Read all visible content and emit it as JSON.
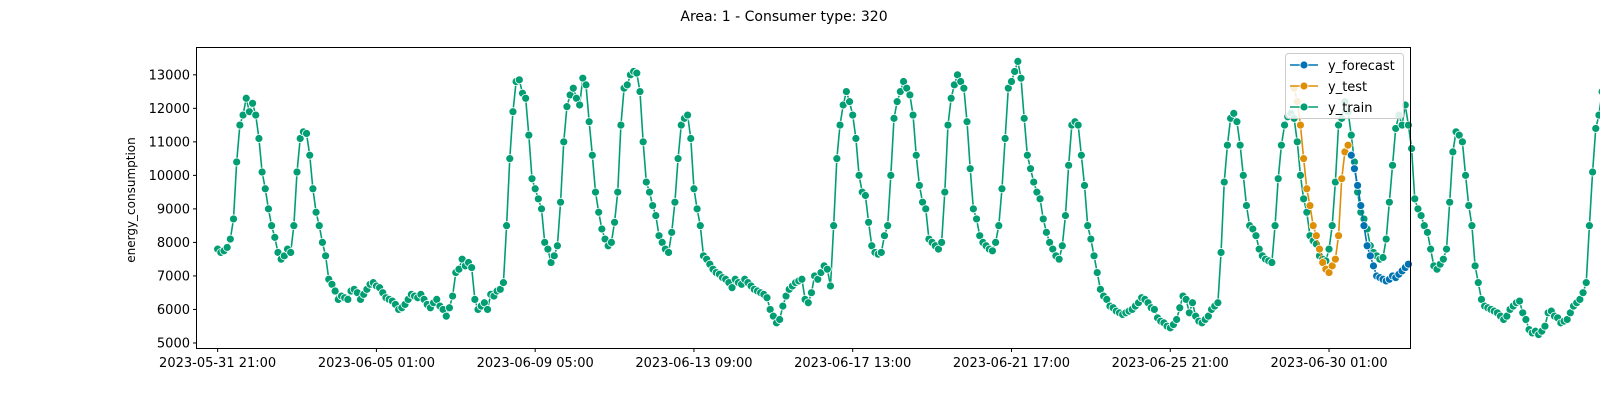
{
  "chart_data": {
    "type": "line",
    "title": "Area: 1 - Consumer type: 320",
    "xlabel": "",
    "ylabel": "energy_consumption",
    "xlim": [
      "2023-05-31T08:00",
      "2023-07-02T04:00"
    ],
    "ylim": [
      4850,
      13800
    ],
    "x_ticks": [
      "2023-05-31 21:00",
      "2023-06-05 01:00",
      "2023-06-09 05:00",
      "2023-06-13 09:00",
      "2023-06-17 13:00",
      "2023-06-21 17:00",
      "2023-06-25 21:00",
      "2023-06-30 01:00"
    ],
    "y_ticks": [
      5000,
      6000,
      7000,
      8000,
      9000,
      10000,
      11000,
      12000,
      13000
    ],
    "grid": false,
    "legend_position": "top-right",
    "legend": [
      "y_forecast",
      "y_test",
      "y_train"
    ],
    "colors": {
      "y_forecast": "#0173b2",
      "y_test": "#de8f05",
      "y_train": "#029e73"
    },
    "series": [
      {
        "name": "y_train",
        "color": "#029e73",
        "step_hours": 2,
        "x_start": "2023-05-31T21:00",
        "values": [
          7800,
          7700,
          7750,
          7850,
          8100,
          8700,
          10400,
          11500,
          11800,
          12300,
          11900,
          12150,
          11800,
          11100,
          10100,
          9600,
          9000,
          8500,
          8150,
          7700,
          7500,
          7600,
          7800,
          7700,
          8500,
          10100,
          11100,
          11300,
          11250,
          10600,
          9600,
          8900,
          8500,
          8000,
          7600,
          6900,
          6750,
          6550,
          6300,
          6400,
          6350,
          6300,
          6550,
          6600,
          6500,
          6300,
          6450,
          6600,
          6750,
          6800,
          6700,
          6650,
          6500,
          6350,
          6300,
          6250,
          6150,
          6000,
          6050,
          6150,
          6300,
          6450,
          6400,
          6350,
          6450,
          6300,
          6150,
          6050,
          6200,
          6300,
          6100,
          6000,
          5800,
          6050,
          6400,
          7100,
          7200,
          7500,
          7300,
          7400,
          7250,
          6300,
          6000,
          6100,
          6200,
          6000,
          6450,
          6400,
          6550,
          6600,
          6800,
          8500,
          10500,
          11900,
          12800,
          12850,
          12450,
          12300,
          11200,
          9900,
          9600,
          9300,
          9000,
          8000,
          7800,
          7400,
          7600,
          7900,
          9200,
          11000,
          12050,
          12400,
          12600,
          12300,
          12100,
          12900,
          12700,
          11600,
          10600,
          9500,
          8900,
          8400,
          8100,
          7900,
          8000,
          8600,
          9500,
          11500,
          12600,
          12700,
          13000,
          13100,
          13050,
          12500,
          11000,
          9800,
          9500,
          9100,
          8800,
          8200,
          8000,
          7800,
          7700,
          8300,
          9200,
          10500,
          11500,
          11700,
          11800,
          11100,
          9600,
          9000,
          8500,
          7600,
          7500,
          7350,
          7200,
          7100,
          7050,
          6950,
          6900,
          6800,
          6650,
          6900,
          6800,
          6750,
          6900,
          6800,
          6700,
          6600,
          6550,
          6500,
          6450,
          6350,
          6000,
          5800,
          5600,
          5700,
          6100,
          6400,
          6600,
          6700,
          6800,
          6850,
          6900,
          6300,
          6200,
          6500,
          7000,
          6900,
          7100,
          7300,
          7200,
          6700,
          8500,
          10500,
          11500,
          12100,
          12500,
          12200,
          11800,
          11100,
          10000,
          9500,
          9400,
          8600,
          7900,
          7700,
          7650,
          7700,
          8200,
          8500,
          10000,
          11700,
          12200,
          12500,
          12800,
          12600,
          12400,
          11800,
          10600,
          9700,
          9200,
          9000,
          8100,
          8000,
          7900,
          7800,
          8000,
          9500,
          11500,
          12300,
          12700,
          13000,
          12800,
          12600,
          11600,
          10200,
          9000,
          8700,
          8200,
          8000,
          7900,
          7800,
          7750,
          8000,
          8500,
          9600,
          11100,
          12600,
          12800,
          13100,
          13400,
          12900,
          11700,
          10600,
          10200,
          9800,
          9500,
          9300,
          8700,
          8300,
          8000,
          7800,
          7600,
          7500,
          7900,
          8800,
          10300,
          11500,
          11600,
          11500,
          10600,
          9700,
          8500,
          8100,
          7600,
          7100,
          6600,
          6400,
          6300,
          6100,
          6050,
          5950,
          5900,
          5850,
          5900,
          5950,
          6000,
          6100,
          6200,
          6350,
          6300,
          6200,
          6050,
          6000,
          5750,
          5650,
          5600,
          5500,
          5450,
          5550,
          5700,
          6050,
          6400,
          6300,
          5900,
          6200,
          5800,
          5650,
          5600,
          5700,
          5800,
          6000,
          6100,
          6200,
          7700,
          9800,
          10900,
          11700,
          11850,
          11600,
          10900,
          10000,
          9100,
          8500,
          8400,
          8200,
          7800,
          7600,
          7500,
          7450,
          7400,
          8500,
          9900,
          10900,
          11500,
          11750,
          11850,
          11700,
          11000,
          10000,
          9300,
          8900,
          8200,
          8050,
          7950,
          7600,
          7500,
          7450,
          7800,
          8500,
          9800,
          11500,
          11700,
          12200,
          11900,
          11200,
          10400,
          9500,
          8900,
          8700,
          8400,
          7900,
          7700,
          7600,
          7500,
          7550,
          8100,
          9200,
          10300,
          11400,
          11800,
          11500,
          12100,
          11500,
          10800,
          9300,
          9000,
          8800,
          8500,
          8300,
          7800,
          7300,
          7200,
          7350,
          7500,
          7800,
          9200,
          10700,
          11300,
          11200,
          11000,
          10000,
          9100,
          8500,
          7300,
          6800,
          6300,
          6100,
          6050,
          6000,
          5950,
          5900,
          5800,
          5700,
          5800,
          6000,
          6100,
          6200,
          6250,
          5900,
          5700,
          5400,
          5300,
          5350,
          5250,
          5350,
          5500,
          5900,
          5950,
          5800,
          5750,
          5600,
          5650,
          5700,
          5900,
          6100,
          6200,
          6300,
          6500,
          6800,
          8500,
          10100,
          11400,
          11800,
          12500,
          12600,
          12400,
          11800,
          10600,
          9900,
          8600,
          8000,
          7800,
          7700,
          7500,
          7300,
          7200,
          7800,
          9000,
          10300,
          11200,
          11700,
          11900,
          11500,
          10400,
          9200,
          8400,
          7900,
          7600,
          7500,
          7100,
          7050,
          7400,
          8700,
          10100,
          11200,
          12000,
          12300,
          12000,
          11200,
          10300,
          9500,
          8800,
          8400,
          8200,
          7900,
          7500,
          7100,
          7000,
          6950,
          7500,
          8900,
          11100,
          12100,
          12600
        ]
      },
      {
        "name": "y_test",
        "color": "#de8f05",
        "step_hours": 2,
        "x_start": "2023-06-29T03:00",
        "values": [
          12600,
          12200,
          11500,
          10500,
          9600,
          9100,
          8500,
          8200,
          7800,
          7400,
          7200,
          7100,
          7300,
          7500,
          8200,
          9900,
          10700,
          10900
        ]
      },
      {
        "name": "y_forecast",
        "color": "#0173b2",
        "step_hours": 2,
        "x_start": "2023-06-30T15:00",
        "values": [
          10600,
          10200,
          9700,
          9100,
          8500,
          7900,
          7600,
          7300,
          7000,
          6950,
          6900,
          6850,
          6900,
          7000,
          6950,
          7050,
          7150,
          7250,
          7350
        ]
      }
    ]
  }
}
